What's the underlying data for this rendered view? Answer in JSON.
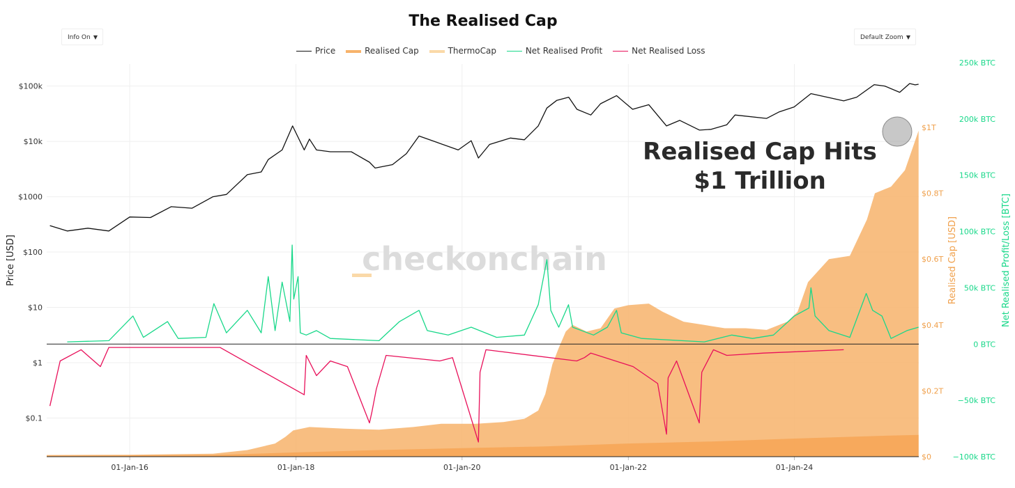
{
  "title": "The Realised Cap",
  "controls": {
    "info_label": "Info On",
    "zoom_label": "Default Zoom"
  },
  "legend": [
    {
      "label": "Price",
      "color": "#111111"
    },
    {
      "label": "Realised Cap",
      "color": "#f7b36b"
    },
    {
      "label": "ThermoCap",
      "color": "#fad9a8"
    },
    {
      "label": "Net Realised Profit",
      "color": "#19d88a"
    },
    {
      "label": "Net Realised Loss",
      "color": "#e8105a"
    }
  ],
  "annotation": {
    "line1": "Realised Cap Hits",
    "line2": "$1 Trillion"
  },
  "watermark": "checkonchain",
  "chart_data": {
    "type": "line",
    "x_range": [
      "2015-01-01",
      "2025-07-01"
    ],
    "x_ticks": [
      "01-Jan-16",
      "01-Jan-18",
      "01-Jan-20",
      "01-Jan-22",
      "01-Jan-24"
    ],
    "axes": {
      "price": {
        "label": "Price [USD]",
        "scale": "log",
        "range": [
          0.02,
          250000
        ],
        "ticks": [
          {
            "label": "$0.1",
            "value": 0.1
          },
          {
            "label": "$1",
            "value": 1
          },
          {
            "label": "$10",
            "value": 10
          },
          {
            "label": "$100",
            "value": 100
          },
          {
            "label": "$1000",
            "value": 1000
          },
          {
            "label": "$10k",
            "value": 10000
          },
          {
            "label": "$100k",
            "value": 100000
          }
        ]
      },
      "realised_cap": {
        "label": "Realised Cap [USD]",
        "unit": "trillion USD",
        "range": [
          0,
          1.0
        ],
        "ticks": [
          {
            "label": "$0",
            "value": 0
          },
          {
            "label": "$0.2T",
            "value": 0.2
          },
          {
            "label": "$0.4T",
            "value": 0.4
          },
          {
            "label": "$0.6T",
            "value": 0.6
          },
          {
            "label": "$0.8T",
            "value": 0.8
          },
          {
            "label": "$1T",
            "value": 1.0
          }
        ]
      },
      "net_realised": {
        "label": "Net Realised Profit/Loss [BTC]",
        "unit": "thousand BTC",
        "range": [
          -100,
          250
        ],
        "ticks": [
          {
            "label": "−100k BTC",
            "value": -100
          },
          {
            "label": "−50k BTC",
            "value": -50
          },
          {
            "label": "0 BTC",
            "value": 0
          },
          {
            "label": "50k BTC",
            "value": 50
          },
          {
            "label": "100k BTC",
            "value": 100
          },
          {
            "label": "150k BTC",
            "value": 150
          },
          {
            "label": "200k BTC",
            "value": 200
          },
          {
            "label": "250k BTC",
            "value": 250
          }
        ]
      }
    },
    "series": [
      {
        "name": "Price",
        "axis": "price",
        "color": "#111111",
        "points": [
          [
            "2015-01-15",
            300
          ],
          [
            "2015-04-01",
            240
          ],
          [
            "2015-07-01",
            270
          ],
          [
            "2015-10-01",
            240
          ],
          [
            "2016-01-01",
            430
          ],
          [
            "2016-04-01",
            420
          ],
          [
            "2016-07-01",
            660
          ],
          [
            "2016-10-01",
            620
          ],
          [
            "2017-01-01",
            1000
          ],
          [
            "2017-03-01",
            1100
          ],
          [
            "2017-06-01",
            2500
          ],
          [
            "2017-08-01",
            2800
          ],
          [
            "2017-09-01",
            4700
          ],
          [
            "2017-11-01",
            7000
          ],
          [
            "2017-12-17",
            19000
          ],
          [
            "2018-02-06",
            7000
          ],
          [
            "2018-03-01",
            11000
          ],
          [
            "2018-04-01",
            7000
          ],
          [
            "2018-06-01",
            6500
          ],
          [
            "2018-09-01",
            6500
          ],
          [
            "2018-11-20",
            4200
          ],
          [
            "2018-12-15",
            3300
          ],
          [
            "2019-03-01",
            3800
          ],
          [
            "2019-05-01",
            6000
          ],
          [
            "2019-06-26",
            12500
          ],
          [
            "2019-09-01",
            10000
          ],
          [
            "2019-12-15",
            7000
          ],
          [
            "2020-02-10",
            10300
          ],
          [
            "2020-03-13",
            5000
          ],
          [
            "2020-05-01",
            8800
          ],
          [
            "2020-08-01",
            11500
          ],
          [
            "2020-10-01",
            10700
          ],
          [
            "2020-12-01",
            19000
          ],
          [
            "2021-01-08",
            40000
          ],
          [
            "2021-02-20",
            55000
          ],
          [
            "2021-04-14",
            63000
          ],
          [
            "2021-05-20",
            38000
          ],
          [
            "2021-07-20",
            30000
          ],
          [
            "2021-09-01",
            48000
          ],
          [
            "2021-11-10",
            67000
          ],
          [
            "2022-01-20",
            38000
          ],
          [
            "2022-04-01",
            46000
          ],
          [
            "2022-06-18",
            19000
          ],
          [
            "2022-08-15",
            24000
          ],
          [
            "2022-11-10",
            16000
          ],
          [
            "2022-12-31",
            16500
          ],
          [
            "2023-03-10",
            20000
          ],
          [
            "2023-04-15",
            30000
          ],
          [
            "2023-09-01",
            26000
          ],
          [
            "2023-10-25",
            34000
          ],
          [
            "2023-12-31",
            42000
          ],
          [
            "2024-03-14",
            73000
          ],
          [
            "2024-08-05",
            54000
          ],
          [
            "2024-10-01",
            63000
          ],
          [
            "2024-12-17",
            106000
          ],
          [
            "2025-02-01",
            100000
          ],
          [
            "2025-04-08",
            77000
          ],
          [
            "2025-05-22",
            111000
          ],
          [
            "2025-06-15",
            105000
          ],
          [
            "2025-06-30",
            108000
          ]
        ]
      },
      {
        "name": "Realised Cap",
        "axis": "realised_cap",
        "color": "#f7b36b",
        "points": [
          [
            "2015-01-01",
            0.005
          ],
          [
            "2016-01-01",
            0.006
          ],
          [
            "2017-01-01",
            0.009
          ],
          [
            "2017-06-01",
            0.02
          ],
          [
            "2017-10-01",
            0.04
          ],
          [
            "2017-11-15",
            0.06
          ],
          [
            "2017-12-20",
            0.08
          ],
          [
            "2018-03-01",
            0.09
          ],
          [
            "2018-08-01",
            0.085
          ],
          [
            "2019-01-01",
            0.082
          ],
          [
            "2019-06-01",
            0.09
          ],
          [
            "2019-10-01",
            0.1
          ],
          [
            "2020-03-01",
            0.1
          ],
          [
            "2020-07-01",
            0.105
          ],
          [
            "2020-10-01",
            0.115
          ],
          [
            "2020-12-01",
            0.14
          ],
          [
            "2021-01-01",
            0.19
          ],
          [
            "2021-02-01",
            0.28
          ],
          [
            "2021-03-01",
            0.33
          ],
          [
            "2021-04-01",
            0.38
          ],
          [
            "2021-05-01",
            0.4
          ],
          [
            "2021-07-01",
            0.38
          ],
          [
            "2021-09-01",
            0.39
          ],
          [
            "2021-11-01",
            0.45
          ],
          [
            "2022-01-01",
            0.46
          ],
          [
            "2022-04-01",
            0.465
          ],
          [
            "2022-06-01",
            0.44
          ],
          [
            "2022-09-01",
            0.41
          ],
          [
            "2022-12-01",
            0.4
          ],
          [
            "2023-03-01",
            0.39
          ],
          [
            "2023-06-01",
            0.39
          ],
          [
            "2023-09-01",
            0.385
          ],
          [
            "2023-12-01",
            0.41
          ],
          [
            "2024-01-15",
            0.44
          ],
          [
            "2024-03-01",
            0.53
          ],
          [
            "2024-06-01",
            0.6
          ],
          [
            "2024-09-01",
            0.61
          ],
          [
            "2024-11-15",
            0.72
          ],
          [
            "2024-12-20",
            0.8
          ],
          [
            "2025-03-01",
            0.82
          ],
          [
            "2025-05-01",
            0.87
          ],
          [
            "2025-06-30",
            0.99
          ]
        ]
      },
      {
        "name": "ThermoCap",
        "axis": "realised_cap",
        "color": "#fad9a8",
        "points": [
          [
            "2015-01-01",
            0.003
          ],
          [
            "2016-01-01",
            0.004
          ],
          [
            "2017-01-01",
            0.005
          ],
          [
            "2018-01-01",
            0.013
          ],
          [
            "2019-01-01",
            0.02
          ],
          [
            "2020-01-01",
            0.026
          ],
          [
            "2021-01-01",
            0.031
          ],
          [
            "2022-01-01",
            0.04
          ],
          [
            "2023-01-01",
            0.046
          ],
          [
            "2024-01-01",
            0.055
          ],
          [
            "2025-01-01",
            0.063
          ],
          [
            "2025-06-30",
            0.066
          ]
        ]
      },
      {
        "name": "Net Realised Profit",
        "axis": "net_realised",
        "color": "#19d88a",
        "points": [
          [
            "2015-04-01",
            2
          ],
          [
            "2015-10-01",
            3
          ],
          [
            "2016-01-15",
            25
          ],
          [
            "2016-03-01",
            6
          ],
          [
            "2016-06-15",
            20
          ],
          [
            "2016-08-01",
            5
          ],
          [
            "2016-12-01",
            6
          ],
          [
            "2017-01-05",
            36
          ],
          [
            "2017-03-01",
            10
          ],
          [
            "2017-06-01",
            30
          ],
          [
            "2017-08-01",
            10
          ],
          [
            "2017-09-01",
            60
          ],
          [
            "2017-10-01",
            12
          ],
          [
            "2017-11-01",
            55
          ],
          [
            "2017-12-05",
            20
          ],
          [
            "2017-12-15",
            88
          ],
          [
            "2017-12-22",
            40
          ],
          [
            "2018-01-10",
            60
          ],
          [
            "2018-01-20",
            10
          ],
          [
            "2018-02-15",
            8
          ],
          [
            "2018-04-01",
            12
          ],
          [
            "2018-06-01",
            5
          ],
          [
            "2019-01-01",
            3
          ],
          [
            "2019-04-01",
            20
          ],
          [
            "2019-06-26",
            30
          ],
          [
            "2019-08-01",
            12
          ],
          [
            "2019-11-01",
            8
          ],
          [
            "2020-02-10",
            15
          ],
          [
            "2020-06-01",
            6
          ],
          [
            "2020-10-01",
            8
          ],
          [
            "2020-12-01",
            35
          ],
          [
            "2021-01-08",
            75
          ],
          [
            "2021-01-25",
            30
          ],
          [
            "2021-03-01",
            15
          ],
          [
            "2021-04-13",
            35
          ],
          [
            "2021-05-01",
            15
          ],
          [
            "2021-08-01",
            8
          ],
          [
            "2021-10-01",
            15
          ],
          [
            "2021-11-10",
            30
          ],
          [
            "2021-12-01",
            10
          ],
          [
            "2022-03-01",
            5
          ],
          [
            "2022-12-01",
            2
          ],
          [
            "2023-04-01",
            8
          ],
          [
            "2023-07-01",
            5
          ],
          [
            "2023-10-01",
            8
          ],
          [
            "2024-01-01",
            25
          ],
          [
            "2024-03-05",
            32
          ],
          [
            "2024-03-14",
            50
          ],
          [
            "2024-04-01",
            25
          ],
          [
            "2024-06-01",
            12
          ],
          [
            "2024-09-01",
            6
          ],
          [
            "2024-11-12",
            45
          ],
          [
            "2024-12-10",
            30
          ],
          [
            "2025-01-20",
            25
          ],
          [
            "2025-03-01",
            5
          ],
          [
            "2025-05-10",
            12
          ],
          [
            "2025-06-30",
            15
          ]
        ]
      },
      {
        "name": "Net Realised Loss",
        "axis": "net_realised",
        "color": "#e8105a",
        "points": [
          [
            "2015-01-15",
            -55
          ],
          [
            "2015-03-01",
            -15
          ],
          [
            "2015-06-01",
            -5
          ],
          [
            "2015-08-25",
            -20
          ],
          [
            "2015-10-01",
            -3
          ],
          [
            "2017-02-01",
            -3
          ],
          [
            "2018-02-06",
            -45
          ],
          [
            "2018-02-15",
            -10
          ],
          [
            "2018-04-01",
            -28
          ],
          [
            "2018-06-01",
            -15
          ],
          [
            "2018-08-15",
            -20
          ],
          [
            "2018-11-20",
            -70
          ],
          [
            "2018-12-01",
            -60
          ],
          [
            "2018-12-20",
            -40
          ],
          [
            "2019-02-01",
            -10
          ],
          [
            "2019-09-25",
            -15
          ],
          [
            "2019-11-20",
            -12
          ],
          [
            "2020-03-13",
            -87
          ],
          [
            "2020-03-20",
            -25
          ],
          [
            "2020-04-15",
            -5
          ],
          [
            "2021-05-19",
            -15
          ],
          [
            "2021-06-22",
            -12
          ],
          [
            "2021-07-20",
            -8
          ],
          [
            "2022-01-22",
            -20
          ],
          [
            "2022-05-10",
            -35
          ],
          [
            "2022-06-18",
            -80
          ],
          [
            "2022-06-25",
            -30
          ],
          [
            "2022-08-01",
            -15
          ],
          [
            "2022-11-09",
            -70
          ],
          [
            "2022-11-20",
            -25
          ],
          [
            "2023-01-10",
            -5
          ],
          [
            "2023-03-10",
            -10
          ],
          [
            "2023-08-18",
            -8
          ],
          [
            "2024-08-05",
            -5
          ]
        ]
      }
    ]
  }
}
